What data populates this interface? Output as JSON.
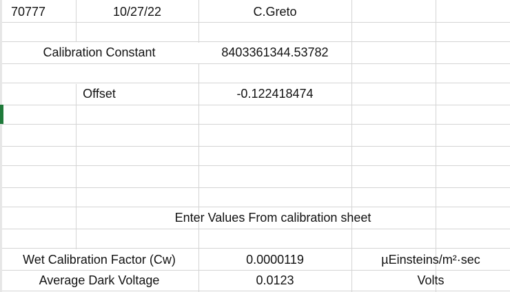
{
  "row1": {
    "id": "70777",
    "date": "10/27/22",
    "name": "C.Greto"
  },
  "calibration_constant": {
    "label": "Calibration Constant",
    "value": "8403361344.53782"
  },
  "offset": {
    "label": "Offset",
    "value": "-0.122418474"
  },
  "instruction": "Enter Values From calibration sheet",
  "wet_calibration": {
    "label": "Wet Calibration Factor (Cw)",
    "value": "0.0000119",
    "unit": "µEinsteins/m²·sec"
  },
  "dark_voltage": {
    "label": "Average Dark Voltage",
    "value": "0.0123",
    "unit": "Volts"
  }
}
